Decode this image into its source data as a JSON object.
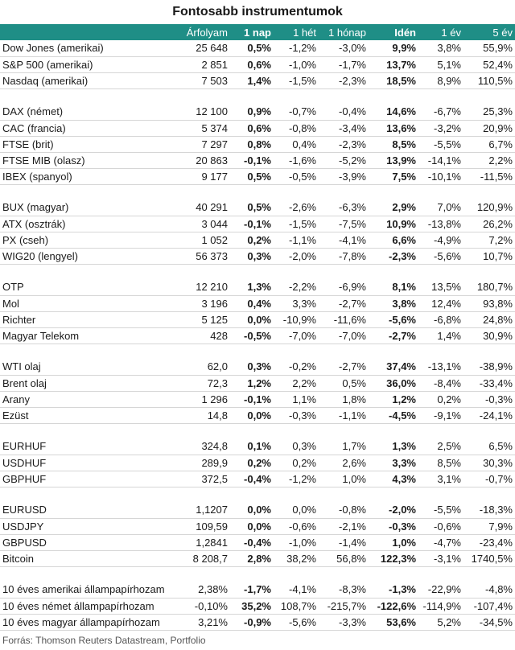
{
  "title": "Fontosabb instrumentumok",
  "headers": [
    "",
    "Árfolyam",
    "1 nap",
    "1 hét",
    "1 hónap",
    "Idén",
    "1 év",
    "5 év"
  ],
  "groups": [
    [
      [
        "Dow Jones (amerikai)",
        "25 648",
        "0,5%",
        "-1,2%",
        "-3,0%",
        "9,9%",
        "3,8%",
        "55,9%"
      ],
      [
        "S&P 500 (amerikai)",
        "2 851",
        "0,6%",
        "-1,0%",
        "-1,7%",
        "13,7%",
        "5,1%",
        "52,4%"
      ],
      [
        "Nasdaq (amerikai)",
        "7 503",
        "1,4%",
        "-1,5%",
        "-2,3%",
        "18,5%",
        "8,9%",
        "110,5%"
      ]
    ],
    [
      [
        "DAX (német)",
        "12 100",
        "0,9%",
        "-0,7%",
        "-0,4%",
        "14,6%",
        "-6,7%",
        "25,3%"
      ],
      [
        "CAC (francia)",
        "5 374",
        "0,6%",
        "-0,8%",
        "-3,4%",
        "13,6%",
        "-3,2%",
        "20,9%"
      ],
      [
        "FTSE (brit)",
        "7 297",
        "0,8%",
        "0,4%",
        "-2,3%",
        "8,5%",
        "-5,5%",
        "6,7%"
      ],
      [
        "FTSE MIB (olasz)",
        "20 863",
        "-0,1%",
        "-1,6%",
        "-5,2%",
        "13,9%",
        "-14,1%",
        "2,2%"
      ],
      [
        "IBEX (spanyol)",
        "9 177",
        "0,5%",
        "-0,5%",
        "-3,9%",
        "7,5%",
        "-10,1%",
        "-11,5%"
      ]
    ],
    [
      [
        "BUX (magyar)",
        "40 291",
        "0,5%",
        "-2,6%",
        "-6,3%",
        "2,9%",
        "7,0%",
        "120,9%"
      ],
      [
        "ATX (osztrák)",
        "3 044",
        "-0,1%",
        "-1,5%",
        "-7,5%",
        "10,9%",
        "-13,8%",
        "26,2%"
      ],
      [
        "PX (cseh)",
        "1 052",
        "0,2%",
        "-1,1%",
        "-4,1%",
        "6,6%",
        "-4,9%",
        "7,2%"
      ],
      [
        "WIG20 (lengyel)",
        "56 373",
        "0,3%",
        "-2,0%",
        "-7,8%",
        "-2,3%",
        "-5,6%",
        "10,7%"
      ]
    ],
    [
      [
        "OTP",
        "12 210",
        "1,3%",
        "-2,2%",
        "-6,9%",
        "8,1%",
        "13,5%",
        "180,7%"
      ],
      [
        "Mol",
        "3 196",
        "0,4%",
        "3,3%",
        "-2,7%",
        "3,8%",
        "12,4%",
        "93,8%"
      ],
      [
        "Richter",
        "5 125",
        "0,0%",
        "-10,9%",
        "-11,6%",
        "-5,6%",
        "-6,8%",
        "24,8%"
      ],
      [
        "Magyar Telekom",
        "428",
        "-0,5%",
        "-7,0%",
        "-7,0%",
        "-2,7%",
        "1,4%",
        "30,9%"
      ]
    ],
    [
      [
        "WTI olaj",
        "62,0",
        "0,3%",
        "-0,2%",
        "-2,7%",
        "37,4%",
        "-13,1%",
        "-38,9%"
      ],
      [
        "Brent olaj",
        "72,3",
        "1,2%",
        "2,2%",
        "0,5%",
        "36,0%",
        "-8,4%",
        "-33,4%"
      ],
      [
        "Arany",
        "1 296",
        "-0,1%",
        "1,1%",
        "1,8%",
        "1,2%",
        "0,2%",
        "-0,3%"
      ],
      [
        "Ezüst",
        "14,8",
        "0,0%",
        "-0,3%",
        "-1,1%",
        "-4,5%",
        "-9,1%",
        "-24,1%"
      ]
    ],
    [
      [
        "EURHUF",
        "324,8",
        "0,1%",
        "0,3%",
        "1,7%",
        "1,3%",
        "2,5%",
        "6,5%"
      ],
      [
        "USDHUF",
        "289,9",
        "0,2%",
        "0,2%",
        "2,6%",
        "3,3%",
        "8,5%",
        "30,3%"
      ],
      [
        "GBPHUF",
        "372,5",
        "-0,4%",
        "-1,2%",
        "1,0%",
        "4,3%",
        "3,1%",
        "-0,7%"
      ]
    ],
    [
      [
        "EURUSD",
        "1,1207",
        "0,0%",
        "0,0%",
        "-0,8%",
        "-2,0%",
        "-5,5%",
        "-18,3%"
      ],
      [
        "USDJPY",
        "109,59",
        "0,0%",
        "-0,6%",
        "-2,1%",
        "-0,3%",
        "-0,6%",
        "7,9%"
      ],
      [
        "GBPUSD",
        "1,2841",
        "-0,4%",
        "-1,0%",
        "-1,4%",
        "1,0%",
        "-4,7%",
        "-23,4%"
      ],
      [
        "Bitcoin",
        "8 208,7",
        "2,8%",
        "38,2%",
        "56,8%",
        "122,3%",
        "-3,1%",
        "1740,5%"
      ]
    ],
    [
      [
        "10 éves amerikai állampapírhozam",
        "2,38%",
        "-1,7%",
        "-4,1%",
        "-8,3%",
        "-1,3%",
        "-22,9%",
        "-4,8%"
      ],
      [
        "10 éves német állampapírhozam",
        "-0,10%",
        "35,2%",
        "108,7%",
        "-215,7%",
        "-122,6%",
        "-114,9%",
        "-107,4%"
      ],
      [
        "10 éves magyar állampapírhozam",
        "3,21%",
        "-0,9%",
        "-5,6%",
        "-3,3%",
        "53,6%",
        "5,2%",
        "-34,5%"
      ]
    ]
  ],
  "source": "Forrás: Thomson Reuters Datastream, Portfolio"
}
